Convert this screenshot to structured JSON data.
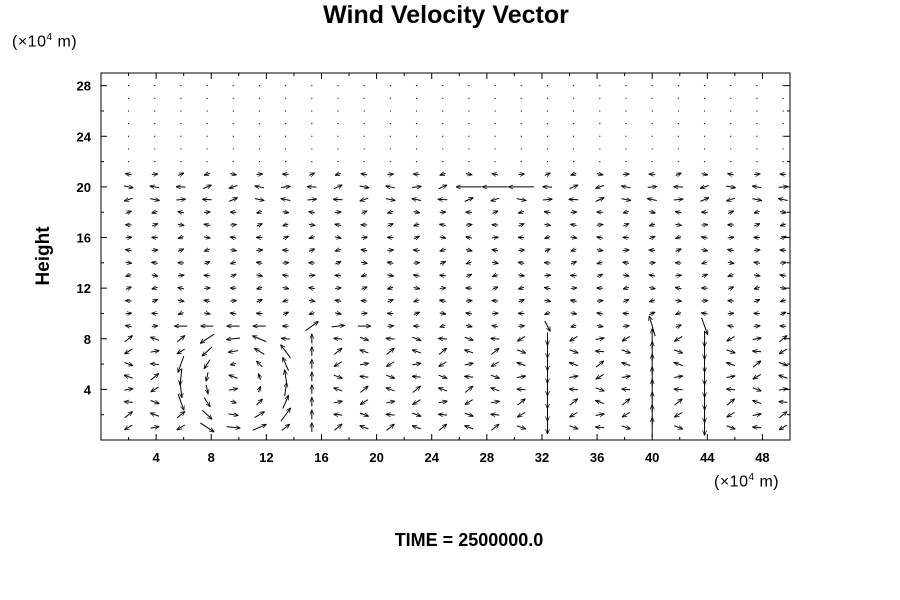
{
  "chart_data": {
    "type": "vector-field",
    "title": "Wind Velocity Vector",
    "xlabel": "",
    "ylabel": "Height",
    "x_unit": {
      "prefix": "(×10",
      "exp": "4",
      "suffix": " m)"
    },
    "y_unit": {
      "prefix": "(×10",
      "exp": "4",
      "suffix": " m)"
    },
    "xlim": [
      0,
      50
    ],
    "ylim": [
      0,
      29
    ],
    "x_ticks": [
      "4",
      "8",
      "12",
      "16",
      "20",
      "24",
      "28",
      "32",
      "36",
      "40",
      "44",
      "48"
    ],
    "y_ticks": [
      "4",
      "8",
      "12",
      "16",
      "20",
      "24",
      "28"
    ],
    "grid": {
      "x_start": 2,
      "x_step": 1.9,
      "y_start": 1,
      "y_step": 1
    },
    "vector_scale": "uniform grid of wind arrows; length proportional to speed",
    "notable_features": [
      "strong westward jet near height 20 between x 26 and 30",
      "circulation cell centred near x 10, height 4",
      "strong vertical motion columns near x 16, 32, 40 and 44"
    ],
    "footer": "TIME = 2500000.0"
  },
  "colors": {
    "arrow": "#000000",
    "axis": "#000000",
    "background": "#ffffff"
  }
}
